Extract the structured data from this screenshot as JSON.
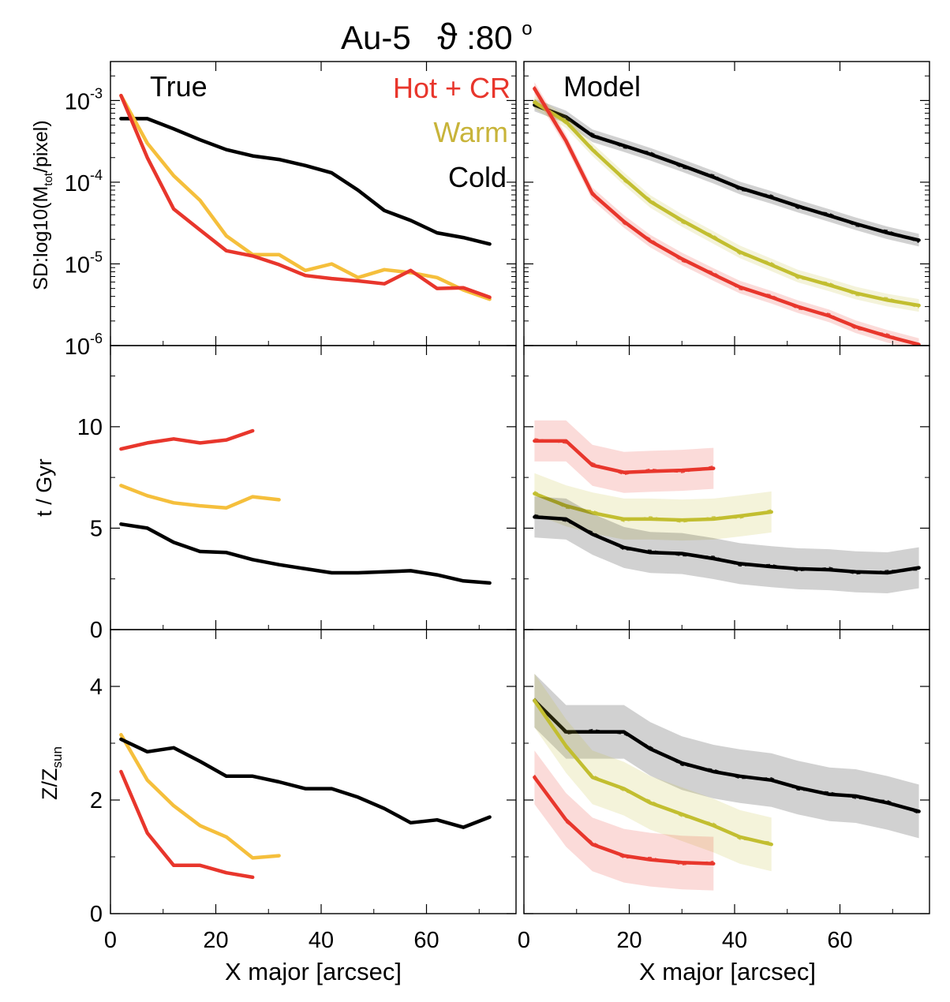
{
  "figure": {
    "title": "Au-5",
    "title_symbol": "ϑ",
    "title_angle": ":80",
    "title_degree": "o"
  },
  "legend": {
    "hot": "Hot + CR",
    "warm": "Warm",
    "cold": "Cold"
  },
  "colors": {
    "hot": "#e8362c",
    "warm_true": "#f5bf3c",
    "warm_model": "#c2be30",
    "cold": "#000000"
  },
  "axes": {
    "xlabel": "X major [arcsec]",
    "xticks": [
      "0",
      "20",
      "40",
      "60"
    ],
    "sd_ylabel": "SD:log10(M",
    "sd_ylabel_sub": "tot",
    "sd_ylabel_end": "/pixel)",
    "sd_ticks": [
      {
        "base": "10",
        "exp": "-3"
      },
      {
        "base": "10",
        "exp": "-4"
      },
      {
        "base": "10",
        "exp": "-5"
      },
      {
        "base": "10",
        "exp": "-6"
      }
    ],
    "age_ylabel": "t / Gyr",
    "age_ticks": [
      "10",
      "5",
      "0"
    ],
    "z_ylabel": "Z/Z",
    "z_ylabel_sub": "sun",
    "z_ticks": [
      "4",
      "2",
      "0"
    ]
  },
  "panel_labels": {
    "left": "True",
    "right": "Model"
  },
  "chart_data": [
    {
      "type": "line",
      "panel": "top-left",
      "scale": "log",
      "title": "True",
      "xlabel": "",
      "ylabel": "SD:log10(M_tot/pixel)",
      "xlim": [
        0,
        77
      ],
      "ylim": [
        1e-06,
        0.003
      ],
      "series": [
        {
          "name": "Cold",
          "color": "cold",
          "x": [
            2,
            7,
            12,
            17,
            22,
            27,
            32,
            37,
            42,
            47,
            52,
            57,
            62,
            67,
            72
          ],
          "y": [
            0.0006,
            0.0006,
            0.00045,
            0.00033,
            0.00025,
            0.00021,
            0.00019,
            0.00016,
            0.00013,
            8e-05,
            4.5e-05,
            3.4e-05,
            2.4e-05,
            2.1e-05,
            1.75e-05
          ]
        },
        {
          "name": "Warm",
          "color": "warm_true",
          "x": [
            2,
            7,
            12,
            17,
            22,
            27,
            32,
            37,
            42,
            47,
            52,
            57,
            62,
            67,
            72
          ],
          "y": [
            0.00115,
            0.0003,
            0.00012,
            6e-05,
            2.2e-05,
            1.3e-05,
            1.3e-05,
            8.3e-06,
            1e-05,
            6.8e-06,
            8.5e-06,
            7.8e-06,
            6.8e-06,
            4.8e-06,
            3.7e-06
          ]
        },
        {
          "name": "Hot + CR",
          "color": "hot",
          "x": [
            2,
            7,
            12,
            17,
            22,
            27,
            32,
            37,
            42,
            47,
            52,
            57,
            62,
            67,
            72
          ],
          "y": [
            0.00115,
            0.0002,
            4.7e-05,
            2.6e-05,
            1.45e-05,
            1.25e-05,
            9.8e-06,
            7.2e-06,
            6.6e-06,
            6.2e-06,
            5.7e-06,
            8.3e-06,
            5e-06,
            5.1e-06,
            3.9e-06
          ]
        }
      ]
    },
    {
      "type": "line",
      "panel": "top-right",
      "scale": "log",
      "title": "Model",
      "xlim": [
        0,
        77
      ],
      "ylim": [
        1e-06,
        0.003
      ],
      "series": [
        {
          "name": "Cold",
          "color": "cold",
          "band": true,
          "x": [
            2,
            8,
            13,
            19,
            24,
            30,
            36,
            41,
            47,
            52,
            58,
            63,
            69,
            75
          ],
          "y": [
            0.00088,
            0.00063,
            0.00037,
            0.00028,
            0.00022,
            0.00016,
            0.000115,
            8.5e-05,
            6.5e-05,
            5.1e-05,
            3.9e-05,
            3.1e-05,
            2.4e-05,
            1.95e-05
          ]
        },
        {
          "name": "Warm",
          "color": "warm_model",
          "band": true,
          "x": [
            2,
            8,
            13,
            19,
            24,
            30,
            36,
            41,
            47,
            52,
            58,
            63,
            69,
            75
          ],
          "y": [
            0.00095,
            0.00055,
            0.00025,
            0.00011,
            5.8e-05,
            3.4e-05,
            2.1e-05,
            1.4e-05,
            9.7e-06,
            7.1e-06,
            5.5e-06,
            4.4e-06,
            3.6e-06,
            3.1e-06
          ]
        },
        {
          "name": "Hot + CR",
          "color": "hot",
          "band": true,
          "x": [
            2,
            8,
            13,
            19,
            24,
            30,
            36,
            41,
            47,
            52,
            58,
            63,
            69,
            75
          ],
          "y": [
            0.0014,
            0.00032,
            7.2e-05,
            3.3e-05,
            1.9e-05,
            1.15e-05,
            7.4e-06,
            5.2e-06,
            3.9e-06,
            3e-06,
            2.3e-06,
            1.7e-06,
            1.3e-06,
            1.03e-06
          ]
        }
      ]
    },
    {
      "type": "line",
      "panel": "middle-left",
      "scale": "linear",
      "xlabel": "",
      "ylabel": "t / Gyr",
      "xlim": [
        0,
        77
      ],
      "ylim": [
        0,
        14
      ],
      "series": [
        {
          "name": "Hot + CR",
          "color": "hot",
          "x": [
            2,
            7,
            12,
            17,
            22,
            27
          ],
          "y": [
            8.9,
            9.2,
            9.4,
            9.2,
            9.35,
            9.8
          ]
        },
        {
          "name": "Warm",
          "color": "warm_true",
          "x": [
            2,
            7,
            12,
            17,
            22,
            27,
            32
          ],
          "y": [
            7.1,
            6.6,
            6.25,
            6.1,
            6.0,
            6.55,
            6.4
          ]
        },
        {
          "name": "Cold",
          "color": "cold",
          "x": [
            2,
            7,
            12,
            17,
            22,
            27,
            32,
            37,
            42,
            47,
            52,
            57,
            62,
            67,
            72
          ],
          "y": [
            5.2,
            5.0,
            4.3,
            3.85,
            3.8,
            3.45,
            3.2,
            3.0,
            2.8,
            2.8,
            2.85,
            2.9,
            2.7,
            2.4,
            2.3
          ]
        }
      ]
    },
    {
      "type": "line",
      "panel": "middle-right",
      "scale": "linear",
      "xlim": [
        0,
        77
      ],
      "ylim": [
        0,
        14
      ],
      "series": [
        {
          "name": "Hot + CR",
          "color": "hot",
          "band": true,
          "x": [
            2,
            8,
            13,
            19,
            24,
            30,
            36
          ],
          "y": [
            9.3,
            9.3,
            8.1,
            7.75,
            7.8,
            7.85,
            7.95
          ]
        },
        {
          "name": "Warm",
          "color": "warm_model",
          "band": true,
          "x": [
            2,
            8,
            13,
            19,
            24,
            30,
            36,
            41,
            47
          ],
          "y": [
            6.7,
            6.1,
            5.75,
            5.45,
            5.45,
            5.4,
            5.45,
            5.6,
            5.8
          ]
        },
        {
          "name": "Cold",
          "color": "cold",
          "band": true,
          "x": [
            2,
            8,
            13,
            19,
            24,
            30,
            36,
            41,
            47,
            52,
            58,
            63,
            69,
            75
          ],
          "y": [
            5.55,
            5.45,
            4.7,
            4.05,
            3.8,
            3.75,
            3.5,
            3.25,
            3.1,
            3.0,
            2.95,
            2.85,
            2.8,
            3.05
          ]
        }
      ]
    },
    {
      "type": "line",
      "panel": "bottom-left",
      "scale": "linear",
      "xlabel": "X major [arcsec]",
      "ylabel": "Z/Z_sun",
      "xlim": [
        0,
        77
      ],
      "ylim": [
        0,
        5
      ],
      "series": [
        {
          "name": "Warm",
          "color": "warm_true",
          "x": [
            2,
            7,
            12,
            17,
            22,
            27,
            32
          ],
          "y": [
            3.15,
            2.35,
            1.9,
            1.55,
            1.35,
            0.98,
            1.02
          ]
        },
        {
          "name": "Hot + CR",
          "color": "hot",
          "x": [
            2,
            7,
            12,
            17,
            22,
            27
          ],
          "y": [
            2.5,
            1.42,
            0.85,
            0.85,
            0.72,
            0.64
          ]
        },
        {
          "name": "Cold",
          "color": "cold",
          "x": [
            2,
            7,
            12,
            17,
            22,
            27,
            32,
            37,
            42,
            47,
            52,
            57,
            62,
            67,
            72
          ],
          "y": [
            3.07,
            2.85,
            2.92,
            2.68,
            2.42,
            2.42,
            2.32,
            2.2,
            2.2,
            2.05,
            1.85,
            1.6,
            1.65,
            1.52,
            1.7
          ]
        }
      ]
    },
    {
      "type": "line",
      "panel": "bottom-right",
      "scale": "linear",
      "xlabel": "X major [arcsec]",
      "xlim": [
        0,
        77
      ],
      "ylim": [
        0,
        5
      ],
      "series": [
        {
          "name": "Cold",
          "color": "cold",
          "band": true,
          "x": [
            2,
            8,
            13,
            19,
            24,
            30,
            36,
            41,
            47,
            52,
            58,
            63,
            69,
            75
          ],
          "y": [
            3.75,
            3.2,
            3.2,
            3.2,
            2.9,
            2.65,
            2.5,
            2.42,
            2.35,
            2.22,
            2.1,
            2.07,
            1.95,
            1.8
          ]
        },
        {
          "name": "Warm",
          "color": "warm_model",
          "band": true,
          "x": [
            2,
            8,
            13,
            19,
            24,
            30,
            36,
            41,
            47
          ],
          "y": [
            3.75,
            2.95,
            2.4,
            2.2,
            1.95,
            1.75,
            1.55,
            1.35,
            1.22
          ]
        },
        {
          "name": "Hot + CR",
          "color": "hot",
          "band": true,
          "x": [
            2,
            8,
            13,
            19,
            24,
            30,
            36
          ],
          "y": [
            2.4,
            1.65,
            1.22,
            1.02,
            0.95,
            0.9,
            0.88
          ]
        }
      ]
    }
  ]
}
